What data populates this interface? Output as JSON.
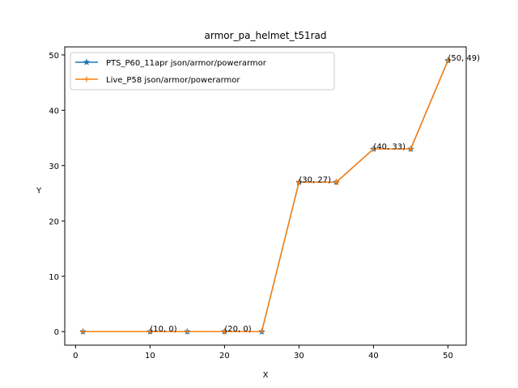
{
  "chart_data": {
    "type": "line",
    "title": "armor_pa_helmet_t51rad",
    "xlabel": "X",
    "ylabel": "Y",
    "xlim": [
      -1.45,
      52.45
    ],
    "ylim": [
      -2.45,
      51.45
    ],
    "xticks": [
      0,
      10,
      20,
      30,
      40,
      50
    ],
    "yticks": [
      0,
      10,
      20,
      30,
      40,
      50
    ],
    "grid": false,
    "legend_position": "top-left",
    "series": [
      {
        "name": "PTS_P60_11apr json/armor/powerarmor",
        "color": "#1f77b4",
        "marker": "star",
        "x": [
          1,
          10,
          15,
          20,
          25,
          30,
          35,
          40,
          45,
          50
        ],
        "y": [
          0,
          0,
          0,
          0,
          0,
          27,
          27,
          33,
          33,
          49
        ]
      },
      {
        "name": "Live_P58 json/armor/powerarmor",
        "color": "#ff7f0e",
        "marker": "plus",
        "x": [
          1,
          10,
          15,
          20,
          25,
          30,
          35,
          40,
          45,
          50
        ],
        "y": [
          0,
          0,
          0,
          0,
          0,
          27,
          27,
          33,
          33,
          49
        ]
      }
    ],
    "annotations": [
      {
        "x": 10,
        "y": 0,
        "text": "(10, 0)"
      },
      {
        "x": 20,
        "y": 0,
        "text": "(20, 0)"
      },
      {
        "x": 30,
        "y": 27,
        "text": "(30, 27)"
      },
      {
        "x": 40,
        "y": 33,
        "text": "(40, 33)"
      },
      {
        "x": 50,
        "y": 49,
        "text": "(50, 49)"
      }
    ]
  }
}
